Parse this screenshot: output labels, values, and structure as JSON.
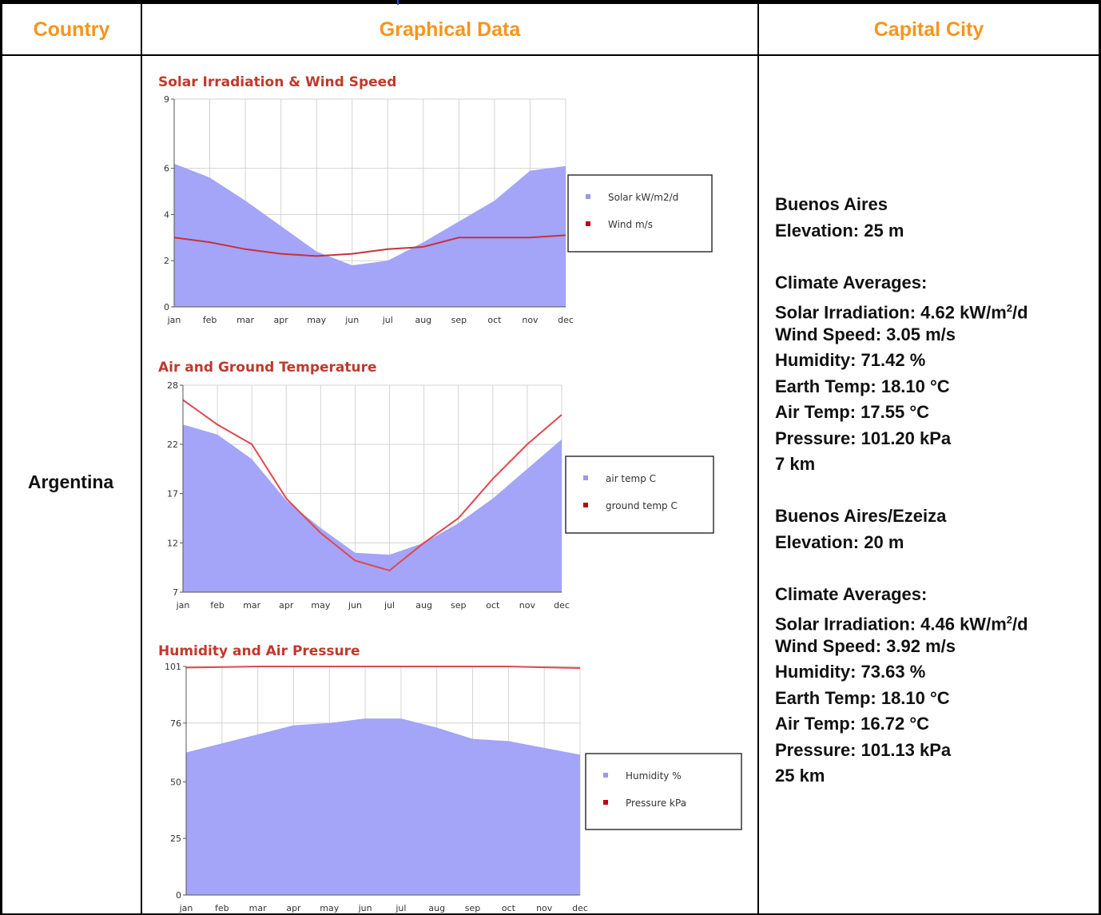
{
  "table": {
    "headers": {
      "country": "Country",
      "graphical": "Graphical Data",
      "capital": "Capital City"
    },
    "country": "Argentina",
    "header_color": "#f7941d"
  },
  "capital": {
    "stations": [
      {
        "name": "Buenos Aires",
        "elevation": "Elevation: 25 m",
        "climate_heading": "Climate Averages:",
        "solar_prefix": "Solar Irradiation: 4.62 kW/m",
        "solar_sup": "2",
        "solar_suffix": "/d",
        "wind": "Wind Speed: 3.05 m/s",
        "humidity": "Humidity: 71.42 %",
        "earth_temp": "Earth Temp: 18.10 °C",
        "air_temp": "Air Temp: 17.55 °C",
        "pressure": "Pressure: 101.20 kPa",
        "distance": "7 km"
      },
      {
        "name": "Buenos Aires/Ezeiza",
        "elevation": "Elevation: 20 m",
        "climate_heading": "Climate Averages:",
        "solar_prefix": "Solar Irradiation: 4.46 kW/m",
        "solar_sup": "2",
        "solar_suffix": "/d",
        "wind": "Wind Speed: 3.92 m/s",
        "humidity": "Humidity: 73.63 %",
        "earth_temp": "Earth Temp: 18.10 °C",
        "air_temp": "Air Temp: 16.72 °C",
        "pressure": "Pressure: 101.13 kPa",
        "distance": "25 km"
      }
    ]
  },
  "chart_data": [
    {
      "type": "area",
      "title": "Solar Irradiation & Wind Speed",
      "categories": [
        "jan",
        "feb",
        "mar",
        "apr",
        "may",
        "jun",
        "jul",
        "aug",
        "sep",
        "oct",
        "nov",
        "dec"
      ],
      "yticks": [
        0,
        2,
        4,
        6,
        9
      ],
      "ylim": [
        0,
        9
      ],
      "grid": true,
      "legend_position": "right",
      "series": [
        {
          "name": "Solar kW/m2/d",
          "kind": "area",
          "color": "#a4a4f8",
          "values": [
            6.2,
            5.6,
            4.6,
            3.5,
            2.4,
            1.8,
            2.0,
            2.8,
            3.7,
            4.6,
            5.9,
            6.1
          ]
        },
        {
          "name": "Wind m/s",
          "kind": "line",
          "color": "#c8313c",
          "values": [
            3.0,
            2.8,
            2.5,
            2.3,
            2.2,
            2.3,
            2.5,
            2.6,
            3.0,
            3.0,
            3.0,
            3.1
          ]
        }
      ]
    },
    {
      "type": "area",
      "title": "Air and Ground Temperature",
      "categories": [
        "jan",
        "feb",
        "mar",
        "apr",
        "may",
        "jun",
        "jul",
        "aug",
        "sep",
        "oct",
        "nov",
        "dec"
      ],
      "yticks": [
        7,
        12,
        17,
        22,
        28
      ],
      "ylim": [
        7,
        28
      ],
      "grid": true,
      "legend_position": "right",
      "series": [
        {
          "name": "air temp C",
          "kind": "area",
          "color": "#a4a4f8",
          "values": [
            24.0,
            23.0,
            20.5,
            16.3,
            13.5,
            11.0,
            10.8,
            12.0,
            14.0,
            16.5,
            19.5,
            22.5
          ]
        },
        {
          "name": "ground temp C",
          "kind": "line",
          "color": "#e0474f",
          "values": [
            26.5,
            24.0,
            22.0,
            16.5,
            13.0,
            10.2,
            9.2,
            12.0,
            14.5,
            18.5,
            22.0,
            25.0
          ]
        }
      ]
    },
    {
      "type": "area",
      "title": "Humidity and Air Pressure",
      "categories": [
        "jan",
        "feb",
        "mar",
        "apr",
        "may",
        "jun",
        "jul",
        "aug",
        "sep",
        "oct",
        "nov",
        "dec"
      ],
      "yticks": [
        0,
        25,
        50,
        76,
        101
      ],
      "ylim": [
        0,
        101
      ],
      "grid": true,
      "legend_position": "right",
      "series": [
        {
          "name": "Humidity %",
          "kind": "area",
          "color": "#a4a4f8",
          "values": [
            63,
            67,
            71,
            75,
            76,
            78,
            78,
            74,
            69,
            68,
            65,
            62
          ]
        },
        {
          "name": "Pressure kPa",
          "kind": "line",
          "color": "#e0474f",
          "values": [
            100.5,
            100.7,
            101,
            101,
            101,
            101,
            101,
            101,
            101,
            101,
            100.6,
            100.3
          ]
        }
      ]
    }
  ]
}
